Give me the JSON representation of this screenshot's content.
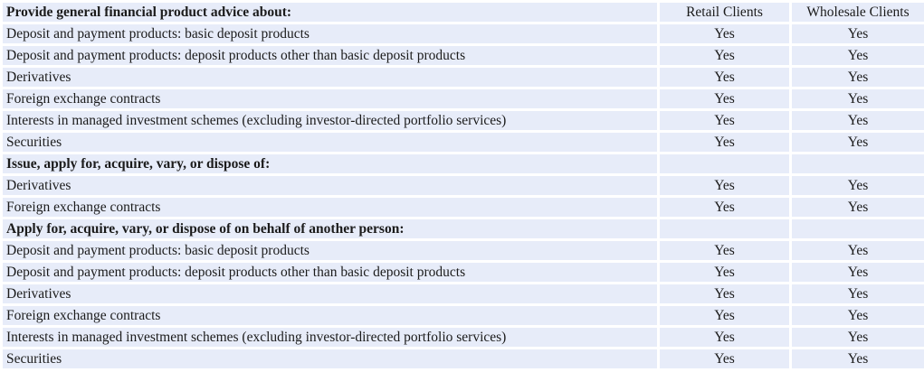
{
  "colors": {
    "cell_background": "#e7ecf9",
    "grid_line": "#ffffff",
    "text": "#1b1b1b"
  },
  "header": {
    "advice_title": "Provide general financial product advice about:",
    "retail_col": "Retail Clients",
    "wholesale_col": "Wholesale Clients"
  },
  "rows": [
    {
      "type": "item",
      "label": "Deposit and payment products: basic deposit products",
      "retail": "Yes",
      "wholesale": "Yes"
    },
    {
      "type": "item",
      "label": "Deposit and payment products: deposit products other than basic deposit products",
      "retail": "Yes",
      "wholesale": "Yes"
    },
    {
      "type": "item",
      "label": "Derivatives",
      "retail": "Yes",
      "wholesale": "Yes"
    },
    {
      "type": "item",
      "label": "Foreign exchange contracts",
      "retail": "Yes",
      "wholesale": "Yes"
    },
    {
      "type": "item",
      "label": "Interests in managed investment schemes (excluding investor-directed portfolio services)",
      "retail": "Yes",
      "wholesale": "Yes"
    },
    {
      "type": "item",
      "label": "Securities",
      "retail": "Yes",
      "wholesale": "Yes"
    },
    {
      "type": "section",
      "label": "Issue, apply for, acquire, vary, or dispose of:",
      "retail": "",
      "wholesale": ""
    },
    {
      "type": "item",
      "label": "Derivatives",
      "retail": "Yes",
      "wholesale": "Yes"
    },
    {
      "type": "item",
      "label": "Foreign exchange contracts",
      "retail": "Yes",
      "wholesale": "Yes"
    },
    {
      "type": "section",
      "label": "Apply for, acquire, vary, or dispose of on behalf of another person:",
      "retail": "",
      "wholesale": ""
    },
    {
      "type": "item",
      "label": "Deposit and payment products: basic deposit products",
      "retail": "Yes",
      "wholesale": "Yes"
    },
    {
      "type": "item",
      "label": "Deposit and payment products: deposit products other than basic deposit products",
      "retail": "Yes",
      "wholesale": "Yes"
    },
    {
      "type": "item",
      "label": "Derivatives",
      "retail": "Yes",
      "wholesale": "Yes"
    },
    {
      "type": "item",
      "label": "Foreign exchange contracts",
      "retail": "Yes",
      "wholesale": "Yes"
    },
    {
      "type": "item",
      "label": "Interests in managed investment schemes (excluding investor-directed portfolio services)",
      "retail": "Yes",
      "wholesale": "Yes"
    },
    {
      "type": "item",
      "label": "Securities",
      "retail": "Yes",
      "wholesale": "Yes"
    }
  ]
}
